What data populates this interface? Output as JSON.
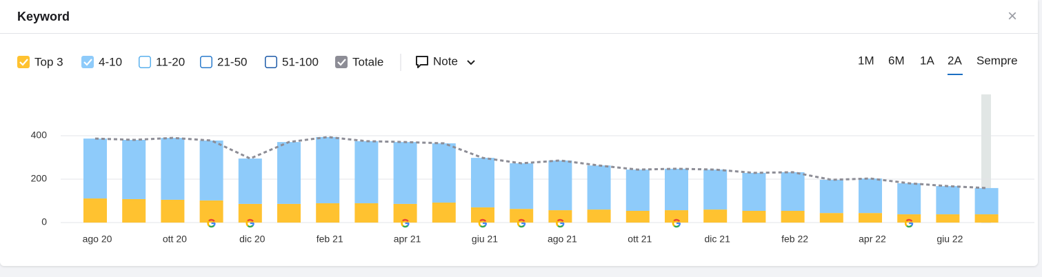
{
  "header": {
    "title": "Keyword",
    "close": "×"
  },
  "toolbar": {
    "note": "Note",
    "range_buttons": [
      "1M",
      "6M",
      "1A",
      "2A",
      "Sempre"
    ],
    "range_selected": "2A"
  },
  "chart_data": {
    "type": "bar",
    "stacked": true,
    "categories": [
      "ago 20",
      null,
      "ott 20",
      null,
      "dic 20",
      null,
      "feb 21",
      null,
      "apr 21",
      null,
      "giu 21",
      null,
      "ago 21",
      null,
      "ott 21",
      null,
      "dic 21",
      null,
      "feb 22",
      null,
      "apr 22",
      null,
      "giu 22",
      null
    ],
    "series": [
      {
        "name": "Top 3",
        "color": "#ffc230",
        "checked": true,
        "values": [
          111,
          108,
          105,
          102,
          86,
          86,
          89,
          89,
          86,
          92,
          70,
          63,
          57,
          60,
          54,
          57,
          60,
          54,
          54,
          44,
          44,
          38,
          38,
          38
        ]
      },
      {
        "name": "4-10",
        "color": "#8ecbfa",
        "checked": true,
        "values": [
          276,
          273,
          285,
          276,
          209,
          285,
          305,
          286,
          285,
          273,
          228,
          210,
          229,
          203,
          190,
          191,
          184,
          175,
          178,
          153,
          159,
          143,
          130,
          121
        ]
      },
      {
        "name": "11-20",
        "color": "#59b0ee",
        "checked": false
      },
      {
        "name": "21-50",
        "color": "#2a7bcc",
        "checked": false
      },
      {
        "name": "51-100",
        "color": "#1c5aa8",
        "checked": false
      },
      {
        "name": "Totale",
        "type": "line",
        "color": "#8d8d96",
        "checked": true,
        "values": [
          387,
          381,
          390,
          378,
          295,
          371,
          394,
          375,
          371,
          365,
          298,
          273,
          286,
          263,
          244,
          248,
          244,
          229,
          232,
          197,
          203,
          181,
          168,
          159
        ]
      }
    ],
    "ylim": [
      0,
      400
    ],
    "yticks": [
      0,
      200,
      400
    ],
    "grid": true
  }
}
